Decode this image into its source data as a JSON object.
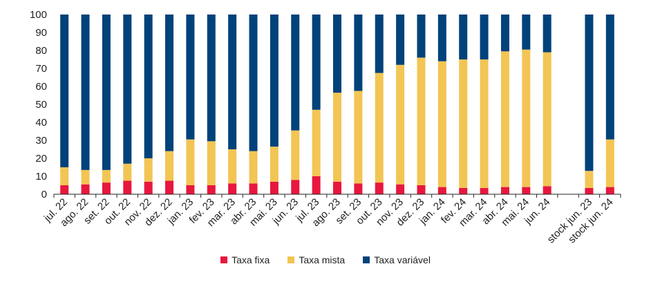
{
  "chart_data": {
    "type": "bar",
    "stacked": true,
    "ylim": [
      0,
      100
    ],
    "yticks": [
      0,
      10,
      20,
      30,
      40,
      50,
      60,
      70,
      80,
      90,
      100
    ],
    "grid": false,
    "legend_position": "bottom-center",
    "categories": [
      "jul. 22",
      "ago. 22",
      "set. 22",
      "out. 22",
      "nov. 22",
      "dez. 22",
      "jan. 23",
      "fev. 23",
      "mar. 23",
      "abr. 23",
      "mai. 23",
      "jun. 23",
      "jul. 23",
      "ago. 23",
      "set. 23",
      "out. 23",
      "nov. 23",
      "dez. 23",
      "jan. 24",
      "fev. 24",
      "mar. 24",
      "abr. 24",
      "mai. 24",
      "jun. 24",
      "",
      "stock jun. 23",
      "stock jun. 24"
    ],
    "series": [
      {
        "name": "Taxa fixa",
        "color": "#e8173e",
        "values": [
          5,
          5.5,
          6.5,
          7.5,
          7,
          7.5,
          5,
          5,
          6,
          6,
          7,
          8,
          10,
          7,
          6,
          6.5,
          5.5,
          5,
          4,
          3.5,
          3.5,
          4,
          4,
          4.5,
          null,
          3.5,
          4
        ]
      },
      {
        "name": "Taxa mista",
        "color": "#f2c554",
        "values": [
          10,
          8,
          7,
          9.5,
          13,
          16.5,
          25.5,
          24.5,
          19,
          18,
          19.5,
          27.5,
          37,
          49.5,
          51.5,
          61,
          66.5,
          71,
          70,
          71.5,
          71.5,
          75.5,
          76.5,
          74.5,
          null,
          9.5,
          26.5
        ]
      },
      {
        "name": "Taxa variável",
        "color": "#00427a",
        "values": [
          85,
          86.5,
          86.5,
          83,
          80,
          76,
          69.5,
          70.5,
          75,
          76,
          73.5,
          64.5,
          53,
          43.5,
          42.5,
          32.5,
          28,
          24,
          26,
          25,
          25,
          20.5,
          19.5,
          21,
          null,
          87,
          69.5
        ]
      }
    ]
  }
}
